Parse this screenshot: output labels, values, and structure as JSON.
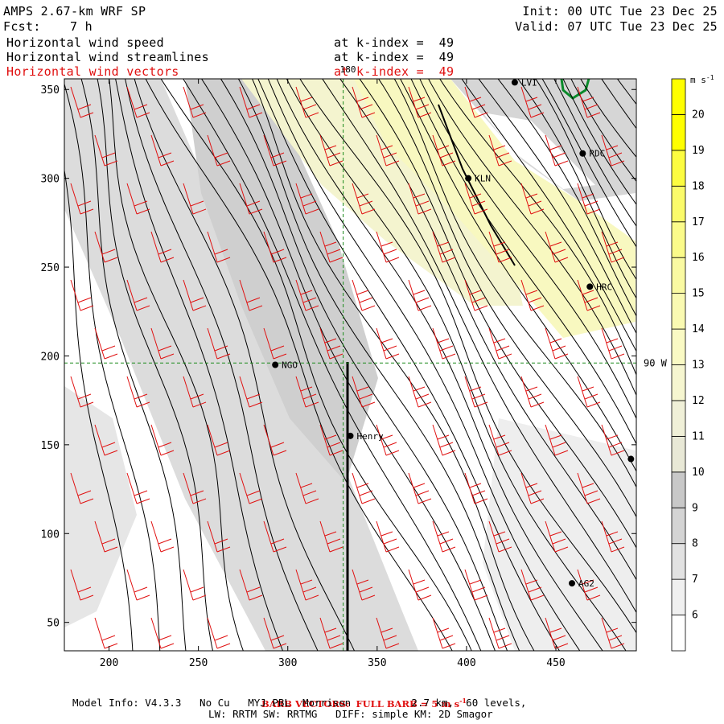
{
  "header": {
    "model_title": "AMPS 2.67-km WRF SP",
    "init": "Init: 00 UTC Tue 23 Dec 25",
    "fcst_label": "Fcst:",
    "fcst_value": "7 h",
    "valid": "Valid: 07 UTC Tue 23 Dec 25",
    "fields": [
      {
        "name": "Horizontal wind speed",
        "level": "at k-index =  49",
        "color": "#000000"
      },
      {
        "name": "Horizontal wind streamlines",
        "level": "at k-index =  49",
        "color": "#000000"
      },
      {
        "name": "Horizontal wind vectors",
        "level": "at k-index =  49",
        "color": "#e01010"
      }
    ]
  },
  "chart_data": {
    "type": "heatmap",
    "xlim": [
      175,
      495
    ],
    "ylim": [
      34,
      356
    ],
    "x_ticks": [
      200,
      250,
      300,
      350,
      400,
      450
    ],
    "y_ticks": [
      50,
      100,
      150,
      200,
      250,
      300,
      350
    ],
    "ref_lines": [
      {
        "orientation": "vertical",
        "value": 331,
        "label": "180"
      },
      {
        "orientation": "horizontal",
        "value": 196,
        "label": "90 W"
      }
    ],
    "stations": [
      {
        "name": "NGO",
        "x": 293,
        "y": 195
      },
      {
        "name": "Henry",
        "x": 335,
        "y": 155
      },
      {
        "name": "KLN",
        "x": 401,
        "y": 300
      },
      {
        "name": "RDC",
        "x": 465,
        "y": 314
      },
      {
        "name": "HRC",
        "x": 469,
        "y": 239
      },
      {
        "name": "AG2",
        "x": 459,
        "y": 72
      },
      {
        "name": "LVI",
        "x": 427,
        "y": 354
      },
      {
        "name": "",
        "x": 492,
        "y": 142
      }
    ],
    "colorbar": {
      "units": "m s-1",
      "levels": [
        6,
        7,
        8,
        9,
        10,
        11,
        12,
        13,
        14,
        15,
        16,
        17,
        18,
        19,
        20
      ],
      "colors": [
        "#ffffff",
        "#f0f0f0",
        "#e2e2e2",
        "#d4d4d4",
        "#c8c8c8",
        "#e8e8d6",
        "#f0f0d8",
        "#f6f6d0",
        "#fafac4",
        "#fafab2",
        "#fafaa2",
        "#fbfb8a",
        "#fbfb6a",
        "#fcfc40",
        "#ffff00",
        "#ffff00"
      ]
    },
    "barb_color": "#e01010",
    "streamline_color": "#000000"
  },
  "footer": {
    "barb_note": "BARB VECTORS:  FULL BARB = 5 m s",
    "barb_note_sup": "-1",
    "model_info_1": "Model Info: V4.3.3   No Cu   MYJ PBL  Morrison          2.7 km,  60 levels,",
    "model_info_2": "LW: RRTM SW: RRTMG   DIFF: simple KM: 2D Smagor"
  }
}
